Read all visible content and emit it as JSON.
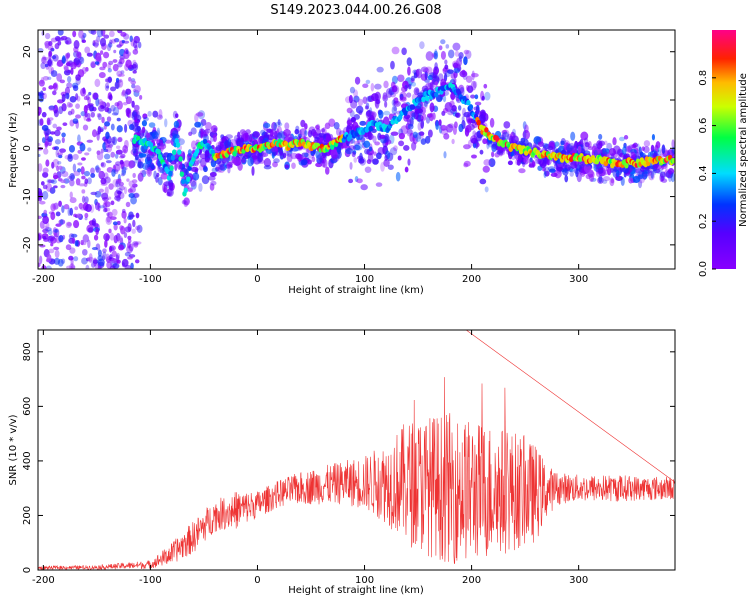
{
  "figure_title": "S149.2023.044.00.26.G08",
  "colors": {
    "background": "#ffffff",
    "axis": "#000000",
    "snr_line": "#ee3333"
  },
  "chart_data": [
    {
      "type": "heatmap",
      "xlabel": "Height of straight line (km)",
      "ylabel": "Frequency (Hz)",
      "xlim": [
        -205,
        390
      ],
      "ylim": [
        -25,
        24.5
      ],
      "x_ticks": [
        -200,
        -100,
        0,
        100,
        200,
        300
      ],
      "y_ticks": [
        -20,
        -10,
        0,
        10,
        20
      ],
      "grid": false,
      "colorbar": {
        "label": "Normalized spectral amplitude",
        "range": [
          0,
          1
        ],
        "ticks": [
          0.0,
          0.2,
          0.4,
          0.6,
          0.8
        ],
        "colormap": "rainbow (purple → blue → cyan → green → yellow → red → magenta)"
      },
      "ridge": {
        "description": "dominant frequency track (Hz) vs height (km)",
        "x": [
          -115,
          -105,
          -95,
          -88,
          -82,
          -78,
          -75,
          -72,
          -68,
          -62,
          -55,
          -48,
          -40,
          -30,
          -10,
          0,
          10,
          20,
          30,
          40,
          50,
          60,
          70,
          80,
          90,
          100,
          110,
          120,
          130,
          140,
          150,
          160,
          170,
          180,
          190,
          200,
          210,
          220,
          230,
          240,
          250,
          260,
          270,
          280,
          290,
          300,
          310,
          320,
          330,
          340,
          350,
          360,
          370,
          385
        ],
        "y": [
          2,
          1,
          0,
          -3,
          -6,
          -1,
          2,
          -2,
          -10,
          -3,
          0,
          1,
          -2,
          -1,
          0,
          0,
          0.5,
          1,
          0.5,
          1,
          0.5,
          0,
          0.5,
          2,
          3,
          4,
          5,
          4,
          6,
          8,
          10,
          11,
          12,
          13,
          11,
          8,
          4,
          2,
          1,
          0,
          -0.5,
          -1,
          -1.5,
          -2,
          -2,
          -2,
          -2.5,
          -2.5,
          -3,
          -3,
          -3,
          -3,
          -2.5,
          -2.5
        ]
      }
    },
    {
      "type": "line",
      "xlabel": "Height of straight line (km)",
      "ylabel": "SNR (10 * v/v)",
      "xlim": [
        -205,
        390
      ],
      "ylim": [
        0,
        880
      ],
      "x_ticks": [
        -200,
        -100,
        0,
        100,
        200,
        300
      ],
      "y_ticks": [
        0,
        200,
        400,
        600,
        800
      ],
      "grid": false,
      "series": [
        {
          "color": "#ee3333",
          "envelope_x": [
            -205,
            -150,
            -100,
            -80,
            -60,
            -40,
            -30,
            -20,
            0,
            20,
            40,
            60,
            80,
            100,
            120,
            140,
            160,
            180,
            200,
            220,
            240,
            260,
            270,
            280,
            300,
            320,
            340,
            360,
            380,
            390
          ],
          "envelope_mean": [
            8,
            10,
            20,
            60,
            120,
            200,
            210,
            220,
            240,
            280,
            300,
            310,
            320,
            320,
            320,
            320,
            310,
            300,
            290,
            290,
            290,
            280,
            290,
            300,
            300,
            300,
            300,
            300,
            300,
            300
          ],
          "envelope_spread": [
            6,
            8,
            15,
            40,
            60,
            60,
            60,
            70,
            50,
            50,
            60,
            70,
            80,
            100,
            150,
            230,
            260,
            280,
            260,
            250,
            220,
            180,
            100,
            60,
            50,
            50,
            50,
            45,
            45,
            40
          ],
          "peak": {
            "x": 195,
            "y": 880
          }
        }
      ]
    }
  ]
}
